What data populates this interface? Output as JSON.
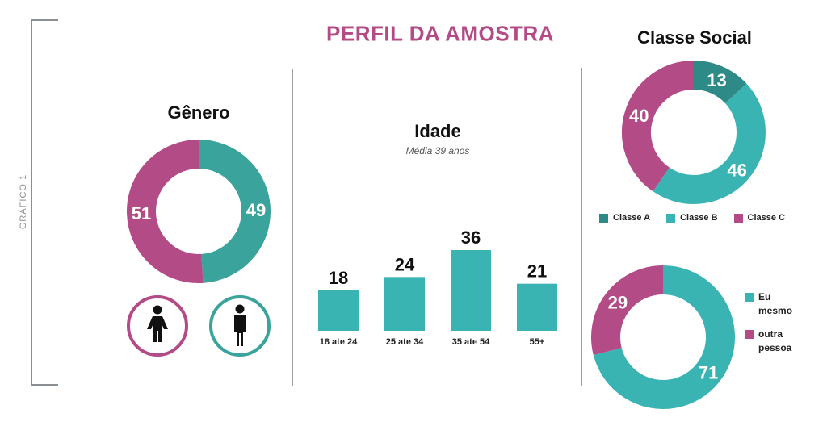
{
  "page": {
    "side_label": "GRÁFICO 1",
    "title": "PERFIL DA AMOSTRA"
  },
  "colors": {
    "magenta": "#b24b86",
    "teal": "#3ab3b3",
    "dark_teal": "#2e8a86",
    "gender_teal": "#3aa39b"
  },
  "genero": {
    "title": "Gênero",
    "icons": [
      "woman-icon",
      "man-icon"
    ]
  },
  "idade": {
    "title": "Idade",
    "subtitle": "Média 39 anos"
  },
  "classe_social": {
    "title": "Classe Social"
  },
  "chart_data": [
    {
      "type": "pie",
      "title": "Gênero",
      "slices": [
        {
          "label": "",
          "value": 49,
          "color": "#3aa39b"
        },
        {
          "label": "",
          "value": 51,
          "color": "#b24b86"
        }
      ]
    },
    {
      "type": "bar",
      "title": "Idade",
      "subtitle": "Média 39 anos",
      "categories": [
        "18 ate 24",
        "25 ate 34",
        "35 ate 54",
        "55+"
      ],
      "values": [
        18,
        24,
        36,
        21
      ],
      "color": "#3ab3b3"
    },
    {
      "type": "pie",
      "title": "Classe Social",
      "legend": "bottom",
      "slices": [
        {
          "label": "Classe A",
          "value": 13,
          "color": "#2e8a86"
        },
        {
          "label": "Classe B",
          "value": 46,
          "color": "#3ab3b3"
        },
        {
          "label": "Classe C",
          "value": 40,
          "color": "#b24b86"
        }
      ]
    },
    {
      "type": "pie",
      "legend": "right",
      "slices": [
        {
          "label": "Eu mesmo",
          "value": 71,
          "color": "#3ab3b3"
        },
        {
          "label": "outra pessoa",
          "value": 29,
          "color": "#b24b86"
        }
      ]
    }
  ]
}
